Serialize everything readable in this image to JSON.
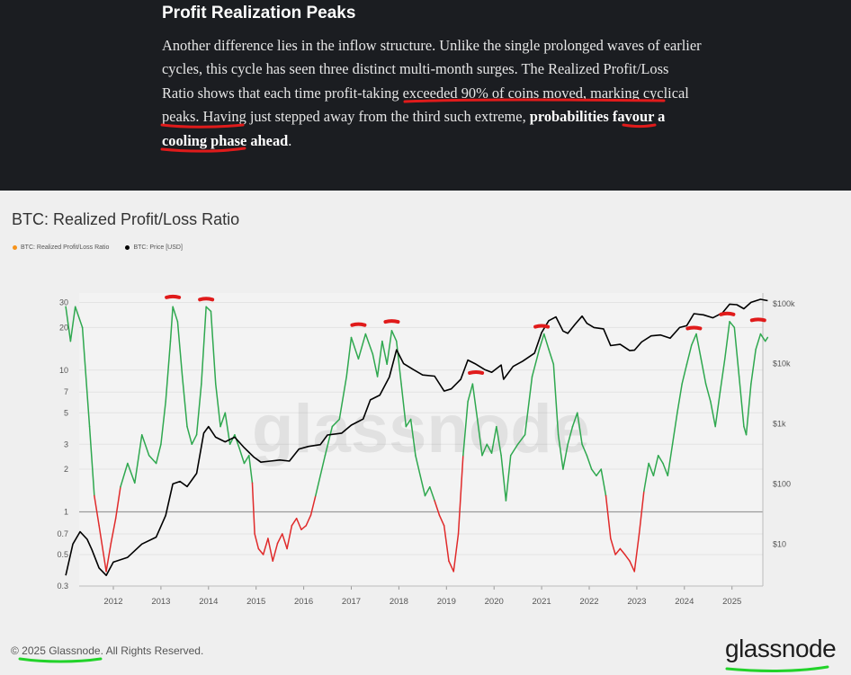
{
  "article": {
    "heading": "Profit Realization Peaks",
    "text_before": "Another difference lies in the inflow structure. Unlike the single prolonged waves of earlier cycles, this cycle has seen three distinct multi-month surges. The Realized Profit/Loss Ratio shows that ",
    "text_underlined_1": "each time profit-taking exceeded 90% of coins moved",
    "text_middle": ", marking cyclical peaks. Having just stepped away from the ",
    "text_underlined_2": "third such extreme",
    "text_comma": ", ",
    "text_bold": "probabilities favour a cooling phase ahead",
    "text_end": "."
  },
  "annotation_color": "#e01b1b",
  "chart_data": {
    "type": "line",
    "title": "BTC: Realized Profit/Loss Ratio",
    "legend": [
      {
        "name": "BTC: Realized Profit/Loss Ratio",
        "color": "#f7931a"
      },
      {
        "name": "BTC: Price [USD]",
        "color": "#000000"
      }
    ],
    "x_ticks": [
      "2012",
      "2013",
      "2014",
      "2015",
      "2016",
      "2017",
      "2018",
      "2019",
      "2020",
      "2021",
      "2022",
      "2023",
      "2024",
      "2025"
    ],
    "y_left_ticks": [
      {
        "label": "30",
        "value": 30
      },
      {
        "label": "20",
        "value": 20
      },
      {
        "label": "10",
        "value": 10
      },
      {
        "label": "7",
        "value": 7
      },
      {
        "label": "5",
        "value": 5
      },
      {
        "label": "3",
        "value": 3
      },
      {
        "label": "2",
        "value": 2
      },
      {
        "label": "1",
        "value": 1
      },
      {
        "label": "0.7",
        "value": 0.7
      },
      {
        "label": "0.5",
        "value": 0.5
      },
      {
        "label": "0.3",
        "value": 0.3
      }
    ],
    "y_right_ticks": [
      {
        "label": "$100k",
        "value": 100000
      },
      {
        "label": "$10k",
        "value": 10000
      },
      {
        "label": "$1k",
        "value": 1000
      },
      {
        "label": "$100",
        "value": 100
      },
      {
        "label": "$10",
        "value": 10
      }
    ],
    "y_left_scale": "log",
    "y_left_range": [
      0.3,
      35
    ],
    "y_right_scale": "log",
    "y_right_range": [
      2,
      150000
    ],
    "x_range": [
      2011.0,
      2025.75
    ],
    "colors": {
      "profit": "#2fa84f",
      "loss": "#e02a2a",
      "price": "#000000",
      "baseline": "#9a9a9a"
    },
    "series": [
      {
        "name": "BTC: Realized Profit/Loss Ratio",
        "points": [
          [
            2011.0,
            28
          ],
          [
            2011.1,
            16
          ],
          [
            2011.2,
            28
          ],
          [
            2011.35,
            20
          ],
          [
            2011.5,
            4
          ],
          [
            2011.6,
            1.3
          ],
          [
            2011.7,
            0.8
          ],
          [
            2011.85,
            0.38
          ],
          [
            2011.95,
            0.6
          ],
          [
            2012.05,
            0.9
          ],
          [
            2012.15,
            1.5
          ],
          [
            2012.3,
            2.2
          ],
          [
            2012.45,
            1.6
          ],
          [
            2012.6,
            3.5
          ],
          [
            2012.75,
            2.5
          ],
          [
            2012.9,
            2.2
          ],
          [
            2013.0,
            3
          ],
          [
            2013.1,
            6
          ],
          [
            2013.2,
            16
          ],
          [
            2013.25,
            28
          ],
          [
            2013.35,
            22
          ],
          [
            2013.45,
            9
          ],
          [
            2013.55,
            4
          ],
          [
            2013.65,
            3
          ],
          [
            2013.75,
            3.5
          ],
          [
            2013.85,
            8
          ],
          [
            2013.95,
            28
          ],
          [
            2014.05,
            26
          ],
          [
            2014.15,
            8
          ],
          [
            2014.25,
            4
          ],
          [
            2014.35,
            5
          ],
          [
            2014.45,
            3
          ],
          [
            2014.55,
            3.5
          ],
          [
            2014.65,
            2.8
          ],
          [
            2014.75,
            2.2
          ],
          [
            2014.85,
            2.5
          ],
          [
            2014.92,
            1.6
          ],
          [
            2014.97,
            0.7
          ],
          [
            2015.05,
            0.55
          ],
          [
            2015.15,
            0.5
          ],
          [
            2015.25,
            0.65
          ],
          [
            2015.35,
            0.45
          ],
          [
            2015.45,
            0.6
          ],
          [
            2015.55,
            0.7
          ],
          [
            2015.65,
            0.55
          ],
          [
            2015.75,
            0.8
          ],
          [
            2015.85,
            0.9
          ],
          [
            2015.95,
            0.75
          ],
          [
            2016.05,
            0.8
          ],
          [
            2016.15,
            0.95
          ],
          [
            2016.25,
            1.3
          ],
          [
            2016.45,
            2.5
          ],
          [
            2016.6,
            4
          ],
          [
            2016.75,
            4.5
          ],
          [
            2016.9,
            9
          ],
          [
            2017.0,
            17
          ],
          [
            2017.15,
            12
          ],
          [
            2017.3,
            18
          ],
          [
            2017.45,
            13
          ],
          [
            2017.55,
            9
          ],
          [
            2017.65,
            16
          ],
          [
            2017.75,
            11
          ],
          [
            2017.85,
            19
          ],
          [
            2017.95,
            16
          ],
          [
            2018.05,
            8
          ],
          [
            2018.15,
            4
          ],
          [
            2018.25,
            4.5
          ],
          [
            2018.35,
            2.5
          ],
          [
            2018.45,
            1.8
          ],
          [
            2018.55,
            1.3
          ],
          [
            2018.65,
            1.5
          ],
          [
            2018.75,
            1.2
          ],
          [
            2018.85,
            0.95
          ],
          [
            2018.95,
            0.8
          ],
          [
            2019.05,
            0.45
          ],
          [
            2019.15,
            0.38
          ],
          [
            2019.25,
            0.7
          ],
          [
            2019.35,
            2.5
          ],
          [
            2019.45,
            6
          ],
          [
            2019.55,
            8
          ],
          [
            2019.65,
            4.5
          ],
          [
            2019.75,
            2.5
          ],
          [
            2019.85,
            3
          ],
          [
            2019.95,
            2.6
          ],
          [
            2020.05,
            4
          ],
          [
            2020.15,
            2.5
          ],
          [
            2020.25,
            1.2
          ],
          [
            2020.35,
            2.5
          ],
          [
            2020.5,
            3
          ],
          [
            2020.65,
            3.5
          ],
          [
            2020.8,
            9
          ],
          [
            2020.95,
            14
          ],
          [
            2021.05,
            18
          ],
          [
            2021.15,
            14
          ],
          [
            2021.25,
            11
          ],
          [
            2021.35,
            3.5
          ],
          [
            2021.45,
            2
          ],
          [
            2021.55,
            3
          ],
          [
            2021.65,
            4
          ],
          [
            2021.75,
            5
          ],
          [
            2021.85,
            3
          ],
          [
            2021.95,
            2.5
          ],
          [
            2022.05,
            2
          ],
          [
            2022.15,
            1.8
          ],
          [
            2022.25,
            2
          ],
          [
            2022.35,
            1.3
          ],
          [
            2022.45,
            0.65
          ],
          [
            2022.55,
            0.5
          ],
          [
            2022.65,
            0.55
          ],
          [
            2022.75,
            0.5
          ],
          [
            2022.85,
            0.45
          ],
          [
            2022.95,
            0.38
          ],
          [
            2023.05,
            0.7
          ],
          [
            2023.15,
            1.4
          ],
          [
            2023.25,
            2.2
          ],
          [
            2023.35,
            1.8
          ],
          [
            2023.45,
            2.5
          ],
          [
            2023.55,
            2.2
          ],
          [
            2023.65,
            1.8
          ],
          [
            2023.75,
            3
          ],
          [
            2023.85,
            5
          ],
          [
            2023.95,
            8
          ],
          [
            2024.05,
            11
          ],
          [
            2024.15,
            15
          ],
          [
            2024.25,
            18
          ],
          [
            2024.35,
            12
          ],
          [
            2024.45,
            8
          ],
          [
            2024.55,
            6
          ],
          [
            2024.65,
            4
          ],
          [
            2024.75,
            7
          ],
          [
            2024.85,
            12
          ],
          [
            2024.95,
            22
          ],
          [
            2025.05,
            20
          ],
          [
            2025.15,
            9
          ],
          [
            2025.25,
            4
          ],
          [
            2025.3,
            3.5
          ],
          [
            2025.4,
            8
          ],
          [
            2025.5,
            14
          ],
          [
            2025.6,
            18
          ],
          [
            2025.7,
            16
          ],
          [
            2025.75,
            17
          ]
        ]
      },
      {
        "name": "BTC: Price [USD]",
        "points": [
          [
            2011.0,
            3
          ],
          [
            2011.15,
            10
          ],
          [
            2011.3,
            16
          ],
          [
            2011.45,
            12
          ],
          [
            2011.55,
            8
          ],
          [
            2011.7,
            4
          ],
          [
            2011.85,
            3
          ],
          [
            2012.0,
            5
          ],
          [
            2012.3,
            6
          ],
          [
            2012.6,
            10
          ],
          [
            2012.9,
            13
          ],
          [
            2013.1,
            30
          ],
          [
            2013.25,
            100
          ],
          [
            2013.4,
            110
          ],
          [
            2013.55,
            90
          ],
          [
            2013.75,
            150
          ],
          [
            2013.9,
            700
          ],
          [
            2014.0,
            900
          ],
          [
            2014.15,
            600
          ],
          [
            2014.35,
            500
          ],
          [
            2014.55,
            600
          ],
          [
            2014.75,
            400
          ],
          [
            2014.95,
            280
          ],
          [
            2015.1,
            230
          ],
          [
            2015.3,
            240
          ],
          [
            2015.5,
            250
          ],
          [
            2015.7,
            240
          ],
          [
            2015.9,
            380
          ],
          [
            2016.1,
            420
          ],
          [
            2016.35,
            450
          ],
          [
            2016.5,
            650
          ],
          [
            2016.8,
            700
          ],
          [
            2017.0,
            950
          ],
          [
            2017.25,
            1200
          ],
          [
            2017.4,
            2500
          ],
          [
            2017.6,
            3000
          ],
          [
            2017.8,
            6000
          ],
          [
            2017.95,
            17000
          ],
          [
            2018.1,
            10000
          ],
          [
            2018.3,
            8000
          ],
          [
            2018.5,
            6500
          ],
          [
            2018.75,
            6200
          ],
          [
            2018.95,
            3500
          ],
          [
            2019.1,
            3800
          ],
          [
            2019.3,
            5500
          ],
          [
            2019.45,
            11500
          ],
          [
            2019.6,
            10000
          ],
          [
            2019.8,
            8000
          ],
          [
            2019.95,
            7200
          ],
          [
            2020.15,
            9500
          ],
          [
            2020.2,
            5500
          ],
          [
            2020.4,
            9000
          ],
          [
            2020.6,
            11000
          ],
          [
            2020.85,
            15000
          ],
          [
            2021.0,
            33000
          ],
          [
            2021.15,
            52000
          ],
          [
            2021.3,
            60000
          ],
          [
            2021.45,
            35000
          ],
          [
            2021.55,
            32000
          ],
          [
            2021.7,
            45000
          ],
          [
            2021.85,
            62000
          ],
          [
            2021.95,
            47000
          ],
          [
            2022.1,
            40000
          ],
          [
            2022.3,
            38000
          ],
          [
            2022.45,
            20000
          ],
          [
            2022.65,
            21000
          ],
          [
            2022.85,
            16500
          ],
          [
            2022.95,
            16800
          ],
          [
            2023.1,
            23000
          ],
          [
            2023.3,
            29000
          ],
          [
            2023.5,
            30000
          ],
          [
            2023.7,
            26500
          ],
          [
            2023.9,
            40000
          ],
          [
            2024.05,
            43000
          ],
          [
            2024.2,
            68000
          ],
          [
            2024.4,
            65000
          ],
          [
            2024.6,
            58000
          ],
          [
            2024.8,
            70000
          ],
          [
            2024.95,
            98000
          ],
          [
            2025.1,
            96000
          ],
          [
            2025.25,
            82000
          ],
          [
            2025.4,
            105000
          ],
          [
            2025.6,
            118000
          ],
          [
            2025.75,
            112000
          ]
        ]
      }
    ]
  },
  "footer": {
    "copyright": "© 2025 Glassnode. All Rights Reserved.",
    "brand": "glassnode"
  },
  "watermark": "glassnode"
}
